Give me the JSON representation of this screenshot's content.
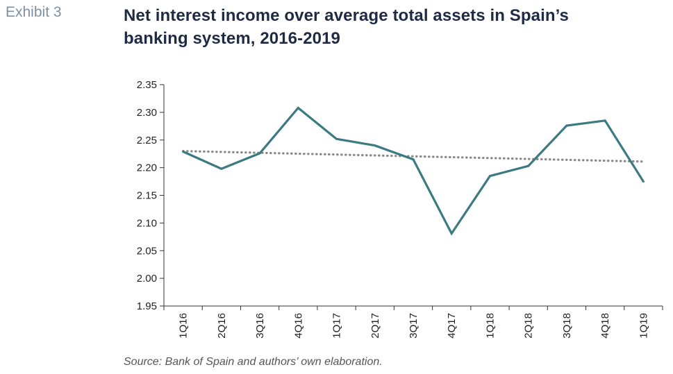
{
  "exhibit_label": "Exhibit 3",
  "title_line1": "Net interest income over average total assets in Spain’s",
  "title_line2": "banking system, 2016-2019",
  "source": "Source: Bank of Spain and authors’ own elaboration.",
  "colors": {
    "series_line": "#3b7a80",
    "trend_line": "#8a8a8a",
    "axis": "#333333",
    "title": "#1f2a44",
    "exhibit": "#7f8fa3"
  },
  "chart_data": {
    "type": "line",
    "categories": [
      "1Q16",
      "2Q16",
      "3Q16",
      "4Q16",
      "1Q17",
      "2Q17",
      "3Q17",
      "4Q17",
      "1Q18",
      "2Q18",
      "3Q18",
      "4Q18",
      "1Q19"
    ],
    "series": [
      {
        "values": [
          2.229,
          2.198,
          2.226,
          2.308,
          2.252,
          2.24,
          2.215,
          2.081,
          2.185,
          2.203,
          2.276,
          2.285,
          2.175
        ]
      }
    ],
    "trendline": {
      "style": "dotted",
      "start": 2.23,
      "end": 2.211
    },
    "ylim": [
      1.95,
      2.35
    ],
    "yticks": [
      "1.95",
      "2.00",
      "2.05",
      "2.10",
      "2.15",
      "2.20",
      "2.25",
      "2.30",
      "2.35"
    ],
    "grid": false,
    "xlabel": "",
    "ylabel": ""
  }
}
